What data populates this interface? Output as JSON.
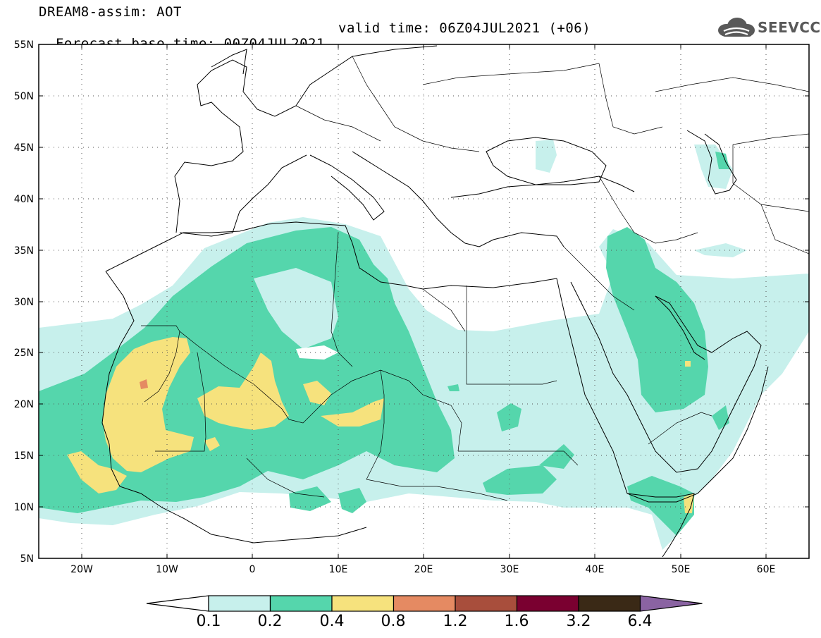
{
  "header": {
    "title": "DREAM8-assim: AOT",
    "base_time": "Forecast base time: 00Z04JUL2021",
    "valid_time": "valid time: 06Z04JUL2021 (+06)"
  },
  "logo": {
    "icon": "cloud-logo-icon",
    "text": "SEEVCCC",
    "color": "#595959"
  },
  "map": {
    "lat_labels": [
      "55N",
      "50N",
      "45N",
      "40N",
      "35N",
      "30N",
      "25N",
      "20N",
      "15N",
      "10N",
      "5N"
    ],
    "lon_labels": [
      "20W",
      "10W",
      "0",
      "10E",
      "20E",
      "30E",
      "40E",
      "50E",
      "60E"
    ],
    "lat_range": [
      5,
      55
    ],
    "lon_range": [
      -25,
      65
    ],
    "gridlines": "dotted",
    "field": "Aerosol Optical Thickness (AOT)"
  },
  "colorbar": {
    "ticks": [
      "0.1",
      "0.2",
      "0.4",
      "0.8",
      "1.2",
      "1.6",
      "3.2",
      "6.4"
    ],
    "colors": [
      "#ffffff",
      "#c7f0ec",
      "#55d6ac",
      "#f6e27d",
      "#e58a62",
      "#a84e3c",
      "#7a0030",
      "#3a2916",
      "#8a63a2"
    ]
  }
}
